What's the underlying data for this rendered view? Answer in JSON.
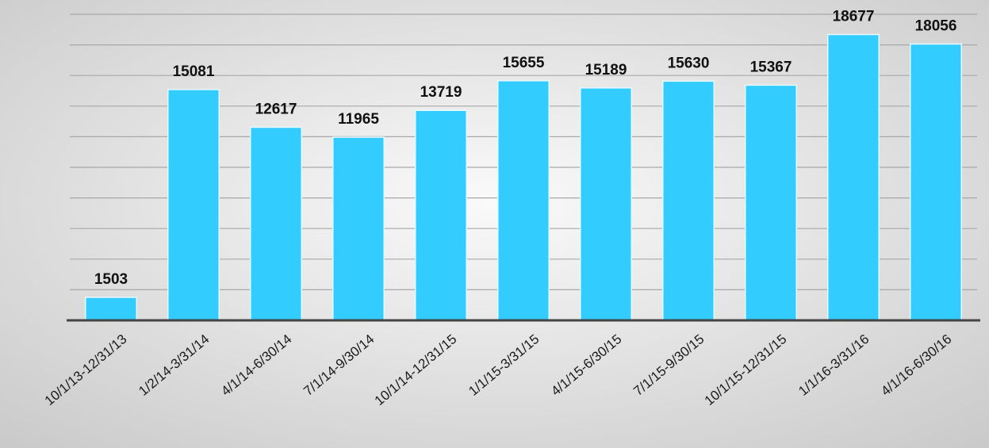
{
  "chart_data": {
    "type": "bar",
    "categories": [
      "10/1/13-12/31/13",
      "1/2/14-3/31/14",
      "4/1/14-6/30/14",
      "7/1/14-9/30/14",
      "10/1/14-12/31/15",
      "1/1/15-3/31/15",
      "4/1/15-6/30/15",
      "7/1/15-9/30/15",
      "10/1/15-12/31/15",
      "1/1/16-3/31/16",
      "4/1/16-6/30/16"
    ],
    "values": [
      1503,
      15081,
      12617,
      11965,
      13719,
      15655,
      15189,
      15630,
      15367,
      18677,
      18056
    ],
    "color": "#33ccff",
    "ylim": [
      0,
      20000
    ],
    "yticks": [
      0,
      2000,
      4000,
      6000,
      8000,
      10000,
      12000,
      14000,
      16000,
      18000,
      20000
    ],
    "grid": true
  }
}
